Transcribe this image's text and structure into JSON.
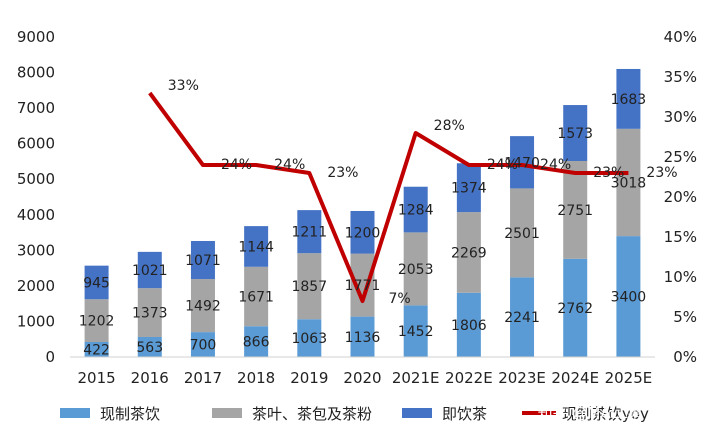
{
  "chart_data": {
    "type": "bar",
    "stacked": true,
    "categories": [
      "2015",
      "2016",
      "2017",
      "2018",
      "2019",
      "2020",
      "2021E",
      "2022E",
      "2023E",
      "2024E",
      "2025E"
    ],
    "series": [
      {
        "name": "现制茶饮",
        "color": "#5B9BD5",
        "values": [
          422,
          563,
          700,
          866,
          1063,
          1136,
          1452,
          1806,
          2241,
          2762,
          3400
        ]
      },
      {
        "name": "茶叶、茶包及茶粉",
        "color": "#A5A5A5",
        "values": [
          1202,
          1373,
          1492,
          1671,
          1857,
          1771,
          2053,
          2269,
          2501,
          2751,
          3018
        ]
      },
      {
        "name": "即饮茶",
        "color": "#4472C4",
        "values": [
          945,
          1021,
          1071,
          1144,
          1211,
          1200,
          1284,
          1374,
          1470,
          1573,
          1683
        ]
      }
    ],
    "line": {
      "name": "现制茶饮yoy",
      "color": "#C00000",
      "axis": "right",
      "values": [
        null,
        33,
        24,
        24,
        23,
        7,
        28,
        24,
        24,
        23,
        23
      ],
      "labels": [
        "",
        "33%",
        "24%",
        "24%",
        "23%",
        "7%",
        "28%",
        "24%",
        "24%",
        "23%",
        "23%"
      ]
    },
    "left_axis": {
      "min": 0,
      "max": 9000,
      "step": 1000,
      "ticks": [
        "0",
        "1000",
        "2000",
        "3000",
        "4000",
        "5000",
        "6000",
        "7000",
        "8000",
        "9000"
      ]
    },
    "right_axis": {
      "min": 0,
      "max": 40,
      "step": 5,
      "ticks": [
        "0%",
        "5%",
        "10%",
        "15%",
        "20%",
        "25%",
        "30%",
        "35%",
        "40%"
      ]
    },
    "grid": false,
    "legend_position": "bottom"
  },
  "watermark": "知乎 @MALL果"
}
